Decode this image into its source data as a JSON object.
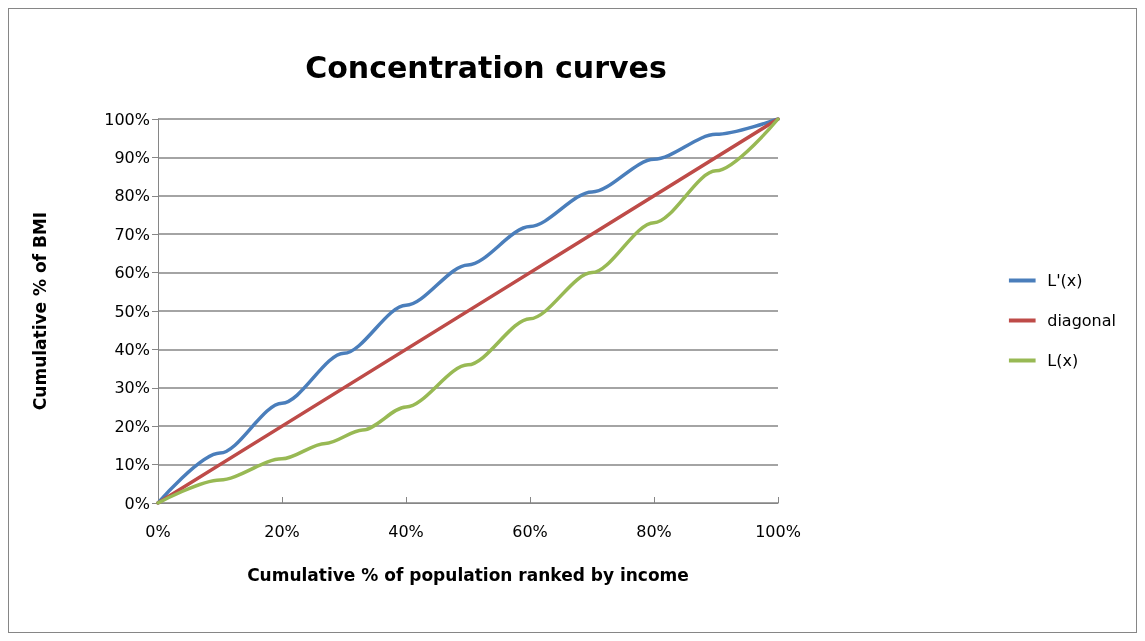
{
  "chart_data": {
    "type": "line",
    "title": "Concentration curves",
    "xlabel": "Cumulative % of population ranked by income",
    "ylabel": "Cumulative % of BMI",
    "xlim": [
      0,
      100
    ],
    "ylim": [
      0,
      100
    ],
    "xticks": [
      {
        "value": 0,
        "label": "0%"
      },
      {
        "value": 20,
        "label": "20%"
      },
      {
        "value": 40,
        "label": "40%"
      },
      {
        "value": 60,
        "label": "60%"
      },
      {
        "value": 80,
        "label": "80%"
      },
      {
        "value": 100,
        "label": "100%"
      }
    ],
    "yticks": [
      {
        "value": 0,
        "label": "0%"
      },
      {
        "value": 10,
        "label": "10%"
      },
      {
        "value": 20,
        "label": "20%"
      },
      {
        "value": 30,
        "label": "30%"
      },
      {
        "value": 40,
        "label": "40%"
      },
      {
        "value": 50,
        "label": "50%"
      },
      {
        "value": 60,
        "label": "60%"
      },
      {
        "value": 70,
        "label": "70%"
      },
      {
        "value": 80,
        "label": "80%"
      },
      {
        "value": 90,
        "label": "90%"
      },
      {
        "value": 100,
        "label": "100%"
      }
    ],
    "grid": "y",
    "legend": "right",
    "marker": "none",
    "line_style": "solid",
    "series": [
      {
        "name": "L'(x)",
        "color": "#4a7ebb",
        "x": [
          0,
          10,
          20,
          30,
          40,
          50,
          60,
          70,
          80,
          90,
          100
        ],
        "values": [
          0,
          13,
          26,
          39,
          51.5,
          62,
          72,
          81,
          89.5,
          96,
          100
        ]
      },
      {
        "name": "diagonal",
        "color": "#be4b48",
        "x": [
          0,
          100
        ],
        "values": [
          0,
          100
        ]
      },
      {
        "name": "L(x)",
        "color": "#98b954",
        "x": [
          0,
          10,
          20,
          27,
          33,
          40,
          50,
          60,
          70,
          80,
          90,
          100
        ],
        "values": [
          0,
          6,
          11.5,
          15.5,
          19,
          25,
          36,
          48,
          60,
          73,
          86.5,
          100
        ]
      }
    ]
  }
}
